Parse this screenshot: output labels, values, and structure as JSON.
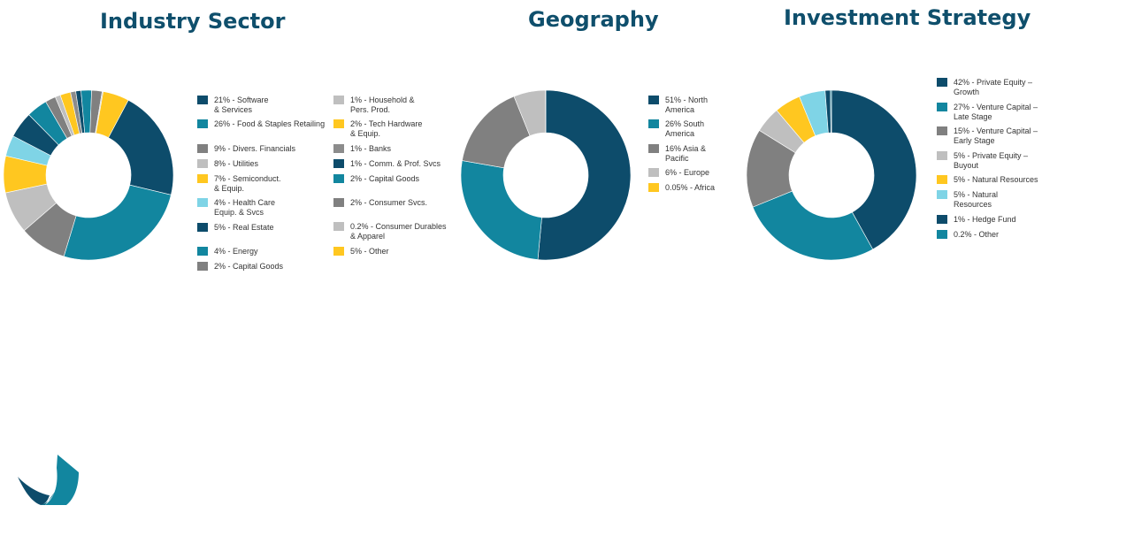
{
  "colors": {
    "navy": "#0d4c6b",
    "teal": "#12869f",
    "gray": "#808080",
    "light_gray": "#bfbfbf",
    "yellow": "#ffc720",
    "light_blue": "#7fd4e6",
    "title": "#0f4f6c"
  },
  "logo": {
    "icon": "firm-logo-icon"
  },
  "chart_data": [
    {
      "type": "donut",
      "title": "Industry Sector",
      "start_angle": 28,
      "slices": [
        {
          "label": "21% - Software\n& Services",
          "value": 21,
          "color": "#0d4c6b"
        },
        {
          "label": "26% - Food & Staples Retailing",
          "value": 26,
          "color": "#12869f"
        },
        {
          "label": "9% - Divers. Financials",
          "value": 9,
          "color": "#808080"
        },
        {
          "label": "8% - Utilities",
          "value": 8,
          "color": "#bfbfbf"
        },
        {
          "label": "7% - Semiconduct.\n& Equip.",
          "value": 7,
          "color": "#ffc720"
        },
        {
          "label": "4% -  Health Care\nEquip. & Svcs",
          "value": 4,
          "color": "#7fd4e6"
        },
        {
          "label": "5% - Real Estate",
          "value": 5,
          "color": "#0d4c6b"
        },
        {
          "label": "4% - Energy",
          "value": 4,
          "color": "#12869f"
        },
        {
          "label": "2% - Capital Goods",
          "value": 2,
          "color": "#808080"
        },
        {
          "label": "1% - Household &\nPers. Prod.",
          "value": 1,
          "color": "#bfbfbf"
        },
        {
          "label": "2% - Tech Hardware\n& Equip.",
          "value": 2,
          "color": "#ffc720"
        },
        {
          "label": "1% - Banks",
          "value": 1,
          "color": "#8c8c8c"
        },
        {
          "label": "1% - Comm. & Prof. Svcs",
          "value": 1,
          "color": "#0d4c6b"
        },
        {
          "label": "2% - Capital Goods",
          "value": 2,
          "color": "#12869f"
        },
        {
          "label": "2% - Consumer Svcs.",
          "value": 2,
          "color": "#808080"
        },
        {
          "label": "0.2% - Consumer Durables\n& Apparel",
          "value": 0.2,
          "color": "#bfbfbf"
        },
        {
          "label": "5% - Other",
          "value": 5,
          "color": "#ffc720"
        }
      ],
      "legend_columns": 2,
      "legend_placement": "right"
    },
    {
      "type": "donut",
      "title": "Geography",
      "start_angle": 0,
      "slices": [
        {
          "label": "51% - North\nAmerica",
          "value": 51,
          "color": "#0d4c6b"
        },
        {
          "label": "26% South\nAmerica",
          "value": 26,
          "color": "#12869f"
        },
        {
          "label": "16% Asia &\nPacific",
          "value": 16,
          "color": "#808080"
        },
        {
          "label": "6% - Europe",
          "value": 6,
          "color": "#bfbfbf"
        },
        {
          "label": "0.05% - Africa",
          "value": 0.05,
          "color": "#ffc720"
        }
      ],
      "legend_columns": 1,
      "legend_placement": "right"
    },
    {
      "type": "donut",
      "title": "Investment Strategy",
      "start_angle": 0,
      "slices": [
        {
          "label": "42% - Private Equity –\nGrowth",
          "value": 42,
          "color": "#0d4c6b"
        },
        {
          "label": "27% - Venture Capital –\nLate Stage",
          "value": 27,
          "color": "#12869f"
        },
        {
          "label": "15% - Venture Capital –\nEarly Stage",
          "value": 15,
          "color": "#808080"
        },
        {
          "label": "5% - Private Equity –\nBuyout",
          "value": 5,
          "color": "#bfbfbf"
        },
        {
          "label": "5% - Natural Resources",
          "value": 5,
          "color": "#ffc720"
        },
        {
          "label": "5% - Natural\nResources",
          "value": 5,
          "color": "#7fd4e6"
        },
        {
          "label": "1% - Hedge Fund",
          "value": 1,
          "color": "#0d4c6b"
        },
        {
          "label": "0.2% - Other",
          "value": 0.2,
          "color": "#12869f"
        }
      ],
      "legend_columns": 1,
      "legend_placement": "right"
    }
  ]
}
